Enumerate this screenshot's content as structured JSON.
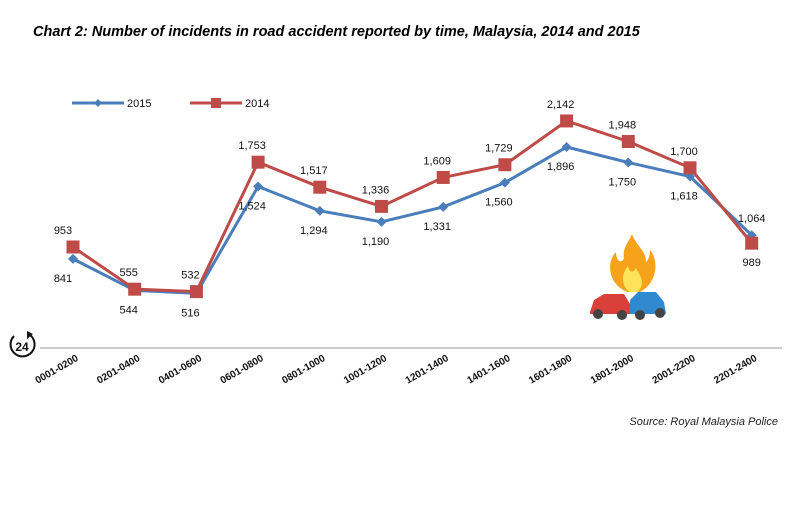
{
  "chart_data": {
    "type": "line",
    "title": "Chart 2: Number of incidents in road accident reported by time, Malaysia, 2014 and 2015",
    "source": "Source: Royal Malaysia Police",
    "xlabel": "",
    "ylabel": "",
    "ylim": [
      0,
      2300
    ],
    "grid": false,
    "legend_position": "top-left",
    "categories": [
      "0001-0200",
      "0201-0400",
      "0401-0600",
      "0601-0800",
      "0801-1000",
      "1001-1200",
      "1201-1400",
      "1401-1600",
      "1601-1800",
      "1801-2000",
      "2001-2200",
      "2201-2400"
    ],
    "series": [
      {
        "name": "2015",
        "color": "#4a7ebb",
        "marker": "diamond",
        "label_pos": [
          "below",
          "below",
          "below",
          "below",
          "below",
          "below",
          "below",
          "below",
          "below",
          "below",
          "below",
          "above"
        ],
        "values": [
          841,
          544,
          516,
          1524,
          1294,
          1190,
          1331,
          1560,
          1896,
          1750,
          1618,
          1064
        ],
        "labels": [
          "841",
          "544",
          "516",
          "1,524",
          "1,294",
          "1,190",
          "1,331",
          "1,560",
          "1,896",
          "1,750",
          "1,618",
          "1,064"
        ]
      },
      {
        "name": "2014",
        "color": "#be4b48",
        "marker": "square",
        "label_pos": [
          "above",
          "above",
          "above",
          "above",
          "above",
          "above",
          "above",
          "above",
          "above",
          "above",
          "above",
          "below"
        ],
        "values": [
          953,
          555,
          532,
          1753,
          1517,
          1336,
          1609,
          1729,
          2142,
          1948,
          1700,
          989
        ],
        "labels": [
          "953",
          "555",
          "532",
          "1,753",
          "1,517",
          "1,336",
          "1,609",
          "1,729",
          "2,142",
          "1,948",
          "1,700",
          "989"
        ]
      }
    ]
  },
  "logo_text": "24"
}
